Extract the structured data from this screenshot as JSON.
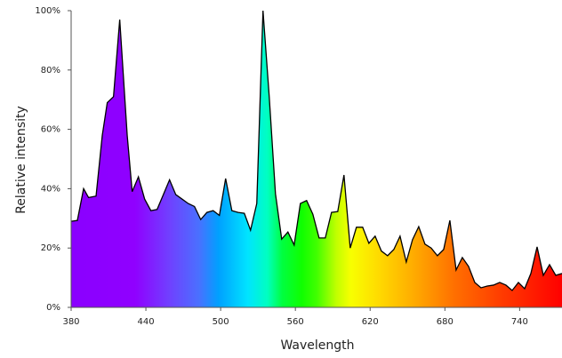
{
  "chart_data": {
    "type": "area",
    "x_label": "Wavelength",
    "y_label": "Relative intensity",
    "x": [
      380,
      385,
      390,
      394,
      400,
      405,
      409,
      414,
      419,
      425,
      429,
      434,
      439,
      444,
      449,
      454,
      459,
      464,
      469,
      474,
      479,
      484,
      489,
      494,
      499,
      504,
      509,
      514,
      519,
      524,
      529,
      534,
      539,
      544,
      549,
      554,
      559,
      564,
      569,
      574,
      579,
      584,
      589,
      594,
      599,
      604,
      609,
      614,
      619,
      624,
      629,
      634,
      639,
      644,
      649,
      654,
      659,
      664,
      669,
      674,
      679,
      684,
      689,
      694,
      699,
      704,
      709,
      714,
      719,
      724,
      729,
      734,
      739,
      744,
      749,
      754,
      759,
      764,
      769,
      774
    ],
    "values": [
      29,
      29.3,
      40,
      37,
      37.5,
      58,
      69,
      71,
      97,
      58,
      39,
      44,
      36.5,
      32.6,
      33,
      38,
      43,
      38,
      36.5,
      35,
      34,
      29.6,
      32,
      32.6,
      31,
      43.4,
      32.6,
      32,
      31.7,
      26,
      35,
      100,
      71,
      38.3,
      23,
      25.4,
      21,
      35,
      36,
      31.4,
      23.4,
      23.4,
      32,
      32.3,
      44.6,
      20,
      27,
      27,
      21.6,
      24,
      19,
      17.4,
      19.5,
      24,
      15.3,
      22.8,
      27.2,
      21.3,
      20,
      17.4,
      19.5,
      29.3,
      12.6,
      16.8,
      13.8,
      8.4,
      6.6,
      7.2,
      7.5,
      8.4,
      7.5,
      5.7,
      8.4,
      6.3,
      11.4,
      20.4,
      10.8,
      14.4,
      10.8,
      11.4
    ],
    "xlim": [
      380,
      774
    ],
    "ylim": [
      0,
      100
    ],
    "xticks": [
      380,
      440,
      500,
      560,
      620,
      680,
      740
    ],
    "yticks": [
      {
        "value": 0,
        "label": "0%"
      },
      {
        "value": 20,
        "label": "20%"
      },
      {
        "value": 40,
        "label": "40%"
      },
      {
        "value": 60,
        "label": "60%"
      },
      {
        "value": 80,
        "label": "80%"
      },
      {
        "value": 100,
        "label": "100%"
      }
    ]
  }
}
